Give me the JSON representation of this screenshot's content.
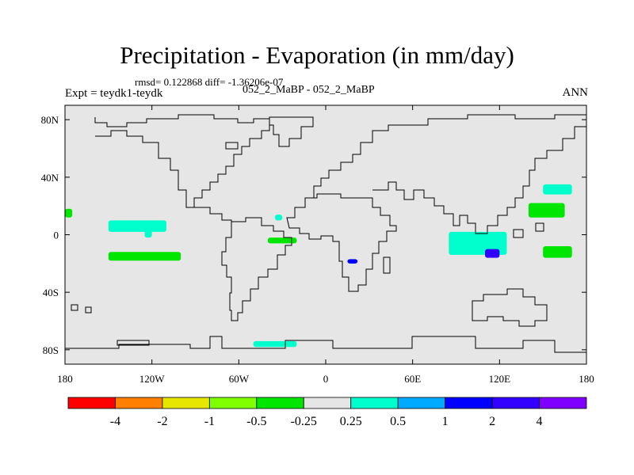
{
  "title": "Precipitation - Evaporation (in mm/day)",
  "stats": "rmsd= 0.122868 diff= -1.36206e-07",
  "left_label": "Expt = teydk1-teydk",
  "center_label": "052_2_MaBP - 052_2_MaBP",
  "right_label": "ANN",
  "chart_data": {
    "type": "heatmap",
    "projection": "cylindrical equidistant",
    "field": "Precipitation - Evaporation difference",
    "units": "mm/day",
    "xlim": [
      -180,
      180
    ],
    "ylim": [
      -90,
      90
    ],
    "x_ticks": [
      {
        "value": -180,
        "label": "180"
      },
      {
        "value": -120,
        "label": "120W"
      },
      {
        "value": -60,
        "label": "60W"
      },
      {
        "value": 0,
        "label": "0"
      },
      {
        "value": 60,
        "label": "60E"
      },
      {
        "value": 120,
        "label": "120E"
      },
      {
        "value": 180,
        "label": "180"
      }
    ],
    "y_ticks": [
      {
        "value": 80,
        "label": "80N"
      },
      {
        "value": 40,
        "label": "40N"
      },
      {
        "value": 0,
        "label": "0"
      },
      {
        "value": -40,
        "label": "40S"
      },
      {
        "value": -80,
        "label": "80S"
      }
    ],
    "colorbar": {
      "colors": [
        "#ff0000",
        "#ff8000",
        "#e6e600",
        "#80ff00",
        "#00e600",
        "#e6e6e6",
        "#00ffcc",
        "#00aaff",
        "#0000ff",
        "#3300ff",
        "#8000ff"
      ],
      "labels": [
        "-4",
        "-2",
        "-1",
        "-0.5",
        "-0.25",
        "0.25",
        "0.5",
        "1",
        "2",
        "4"
      ]
    },
    "regions": [
      {
        "name": "central-pacific-itcz",
        "lon": [
          -150,
          -110
        ],
        "lat": [
          2,
          10
        ],
        "level": "0.25 to 0.5"
      },
      {
        "name": "equatorial-central-pacific",
        "lon": [
          -125,
          -120
        ],
        "lat": [
          -2,
          4
        ],
        "level": "0.25 to 0.5"
      },
      {
        "name": "south-pacific-band",
        "lon": [
          -150,
          -100
        ],
        "lat": [
          -18,
          -12
        ],
        "level": "-0.5 to -0.25"
      },
      {
        "name": "central-pacific-west-edge",
        "lon": [
          -180,
          -175
        ],
        "lat": [
          12,
          18
        ],
        "level": "-0.5 to -0.25"
      },
      {
        "name": "north-atlantic-off-africa",
        "lon": [
          -35,
          -30
        ],
        "lat": [
          10,
          14
        ],
        "level": "0.25 to 0.5"
      },
      {
        "name": "equatorial-atlantic",
        "lon": [
          -40,
          -20
        ],
        "lat": [
          -6,
          -2
        ],
        "level": "-0.5 to -0.25"
      },
      {
        "name": "madagascar-channel",
        "lon": [
          15,
          22
        ],
        "lat": [
          -20,
          -17
        ],
        "level": "1 to 2"
      },
      {
        "name": "indian-ocean-east",
        "lon": [
          85,
          125
        ],
        "lat": [
          -14,
          2
        ],
        "level": "0.25 to 0.5"
      },
      {
        "name": "maritime-continent-core",
        "lon": [
          110,
          120
        ],
        "lat": [
          -16,
          -10
        ],
        "level": "2 to 4"
      },
      {
        "name": "western-pacific-subtropical",
        "lon": [
          140,
          165
        ],
        "lat": [
          12,
          22
        ],
        "level": "-0.5 to -0.25"
      },
      {
        "name": "western-pacific-north",
        "lon": [
          150,
          170
        ],
        "lat": [
          28,
          35
        ],
        "level": "0.25 to 0.5"
      },
      {
        "name": "south-pacific-convergence",
        "lon": [
          150,
          170
        ],
        "lat": [
          -16,
          -8
        ],
        "level": "-0.5 to -0.25"
      },
      {
        "name": "southern-ocean-atlantic",
        "lon": [
          -50,
          -20
        ],
        "lat": [
          -78,
          -74
        ],
        "level": "0.25 to 0.5"
      }
    ]
  }
}
